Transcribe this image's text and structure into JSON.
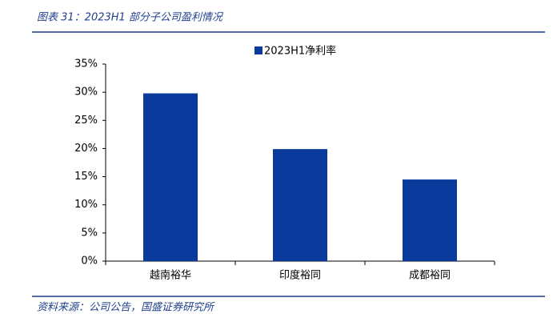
{
  "chart_data": {
    "type": "bar",
    "title": "图表 31：2023H1 部分子公司盈利情况",
    "categories": [
      "越南裕华",
      "印度裕同",
      "成都裕同"
    ],
    "series": [
      {
        "name": "2023H1净利率",
        "color": "#0a3b9c",
        "values": [
          29.8,
          19.9,
          14.5
        ]
      }
    ],
    "ylim": [
      0,
      35
    ],
    "yticks": [
      {
        "value": 0,
        "label": "0%"
      },
      {
        "value": 5,
        "label": "5%"
      },
      {
        "value": 10,
        "label": "10%"
      },
      {
        "value": 15,
        "label": "15%"
      },
      {
        "value": 20,
        "label": "20%"
      },
      {
        "value": 25,
        "label": "25%"
      },
      {
        "value": 30,
        "label": "30%"
      },
      {
        "value": 35,
        "label": "35%"
      }
    ],
    "legend": "top",
    "source": "资料来源：公司公告，国盛证券研究所"
  }
}
